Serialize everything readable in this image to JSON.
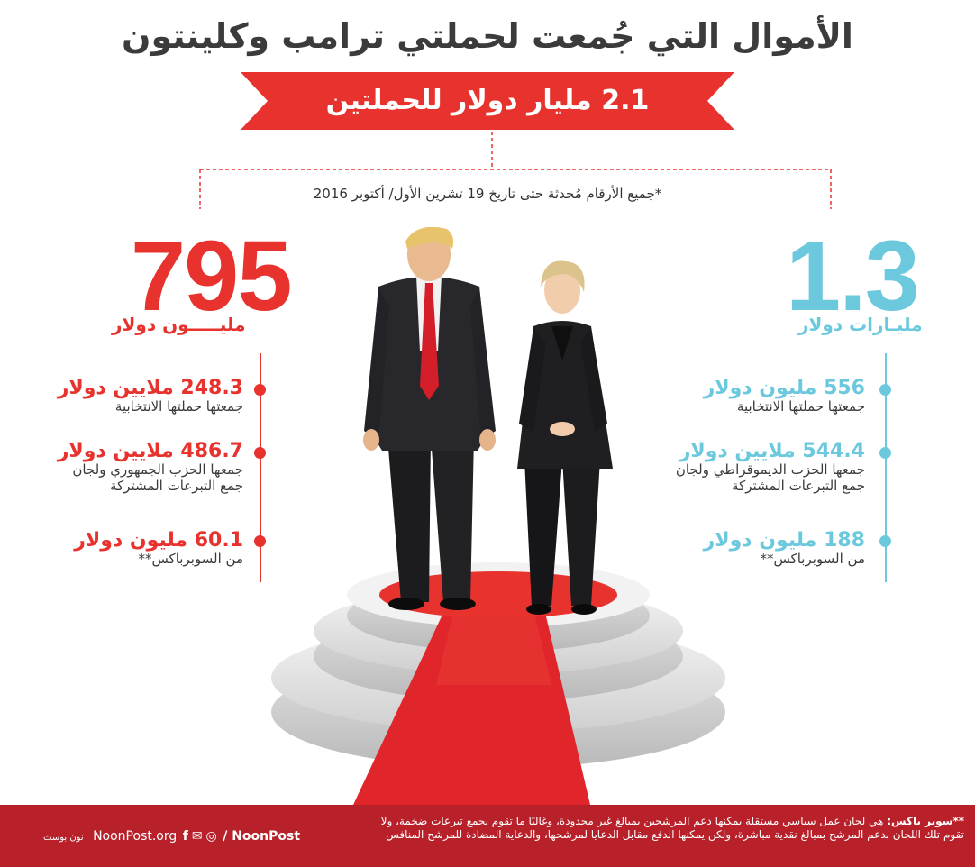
{
  "title": "الأموال التي جُمعت لحملتي ترامب وكلينتون",
  "banner": "2.1 مليار دولار للحملتين",
  "note": "*جميع الأرقام مُحدثة حتى تاريخ 19 تشرين الأول/ أكتوبر 2016",
  "colors": {
    "trump": "#e8322e",
    "clinton": "#6cc9dd",
    "footer": "#b8202a"
  },
  "trump": {
    "total": "795",
    "unit": "مليـــــون دولار",
    "items": [
      {
        "amount": "248.3 ملايين دولار",
        "desc1": "جمعتها حملتها الانتخابية",
        "desc2": ""
      },
      {
        "amount": "486.7 ملايين دولار",
        "desc1": "جمعها الحزب الجمهوري ولجان",
        "desc2": "جمع التبرعات المشتركة"
      },
      {
        "amount": "60.1 مليون دولار",
        "desc1": "من السوبرباكس**",
        "desc2": ""
      }
    ]
  },
  "clinton": {
    "total": "1.3",
    "unit": "مليـارات دولار",
    "items": [
      {
        "amount": "556 مليون دولار",
        "desc1": "جمعتها حملتها الانتخابية",
        "desc2": ""
      },
      {
        "amount": "544.4 ملايين دولار",
        "desc1": "جمعها الحزب الديموقراطي ولجان",
        "desc2": "جمع التبرعات المشتركة"
      },
      {
        "amount": "188 مليون دولار",
        "desc1": "من السوبرباكس**",
        "desc2": ""
      }
    ]
  },
  "footer": {
    "footnote_label": "**سوبر باكس:",
    "footnote_text": "هي لجان عمل سياسي مستقلة يمكنها دعم المرشحين بمبالغ غير محدودة، وغالبًا ما تقوم بجمع تبرعات ضخمة، ولا تقوم تلك اللجان بدعم المرشح بمبالغ نقدية مباشرة، ولكن يمكنها الدفع مقابل الدعايا لمرشحها، والدعاية المضادة للمرشح المنافس",
    "website": "NoonPost.org",
    "handle": "/ NoonPost",
    "logo_text": "نون بوست",
    "icons": [
      "facebook-icon",
      "twitter-icon",
      "instagram-icon"
    ]
  }
}
